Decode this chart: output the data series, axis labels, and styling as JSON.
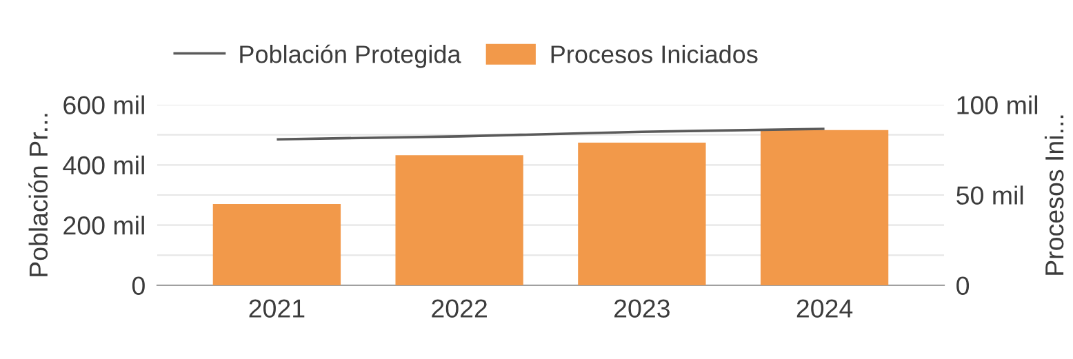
{
  "chart_data": {
    "type": "bar",
    "categories": [
      "2021",
      "2022",
      "2023",
      "2024"
    ],
    "series": [
      {
        "name": "Población Protegida",
        "type": "line",
        "color": "#5a5a5a",
        "values": [
          485,
          495,
          510,
          520
        ]
      },
      {
        "name": "Procesos Iniciados",
        "axis": "y2",
        "color": "#f2994a",
        "values": [
          45,
          72,
          79,
          86
        ]
      }
    ],
    "ylabel": "Población Pr...",
    "y2label": "Procesos Ini...",
    "ylim": [
      0,
      600
    ],
    "yticks": [
      0,
      {
        "value": 100,
        "label": null
      },
      {
        "value": 200,
        "label": "200 mil"
      },
      {
        "value": 300,
        "label": null
      },
      {
        "value": 400,
        "label": "400 mil"
      },
      {
        "value": 500,
        "label": null
      },
      {
        "value": 600,
        "label": "600 mil"
      }
    ],
    "y2lim": [
      0,
      100
    ],
    "y2ticks": [
      0,
      {
        "value": 50,
        "label": "50 mil"
      },
      {
        "value": 100,
        "label": "100 mil"
      }
    ],
    "grid": "y",
    "legend": "top left"
  }
}
